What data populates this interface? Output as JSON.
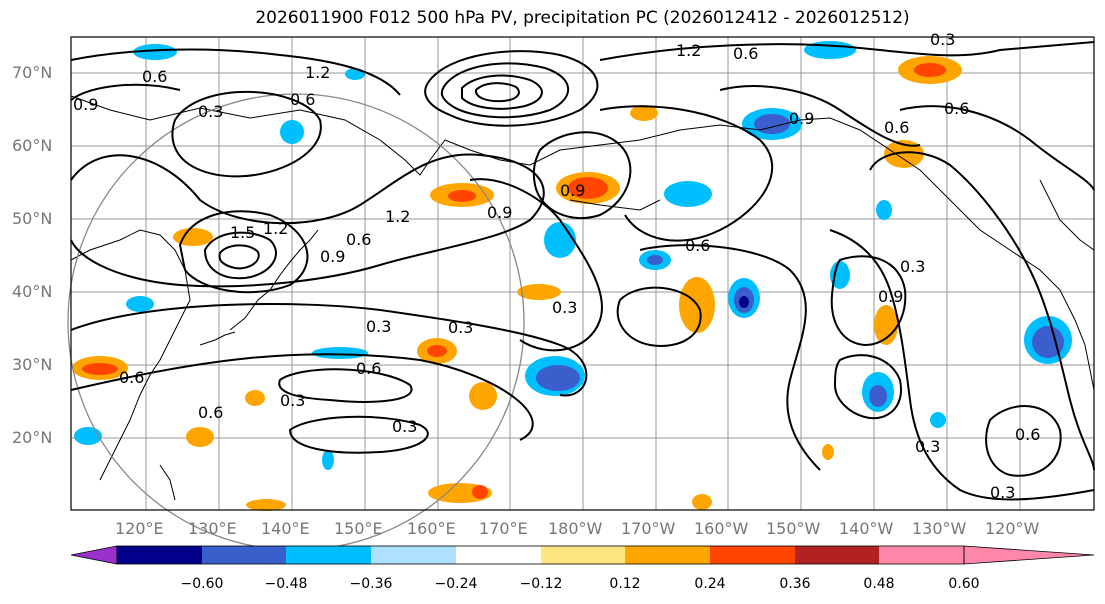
{
  "title": "2026011900 F012 500 hPa PV, precipitation PC (2026012412 - 2026012512)",
  "map": {
    "lat_labels": [
      "70°N",
      "60°N",
      "50°N",
      "40°N",
      "30°N",
      "20°N"
    ],
    "lon_labels": [
      "120°E",
      "130°E",
      "140°E",
      "150°E",
      "160°E",
      "170°E",
      "180°W",
      "170°W",
      "160°W",
      "150°W",
      "140°W",
      "130°W",
      "120°W"
    ],
    "contour_labels": [
      "0.6",
      "0.3",
      "0.9",
      "1.2",
      "0.6",
      "0.6",
      "0.9",
      "1.2",
      "1.5",
      "0.3",
      "0.6",
      "0.9",
      "1.2",
      "0.9",
      "0.6",
      "0.3",
      "0.3",
      "0.6",
      "0.3",
      "0.3",
      "0.6",
      "0.6",
      "0.9",
      "0.9",
      "0.6",
      "0.3",
      "0.3",
      "0.6",
      "0.6",
      "0.3",
      "0.3",
      "1.2"
    ]
  },
  "colorbar": {
    "ticks": [
      "−0.60",
      "−0.48",
      "−0.36",
      "−0.24",
      "−0.12",
      "0.12",
      "0.24",
      "0.36",
      "0.48",
      "0.60"
    ],
    "colors": [
      "#9932cc",
      "#00008b",
      "#3a5fcd",
      "#00bfff",
      "#b0e0ff",
      "#ffffff",
      "#ffe680",
      "#ffa500",
      "#ff4500",
      "#b22222",
      "#ff88aa"
    ]
  },
  "colors": {
    "orange": "#ffa500",
    "red": "#ff4500",
    "lightblue": "#00bfff",
    "blue": "#3a5fcd",
    "navy": "#00008b"
  }
}
